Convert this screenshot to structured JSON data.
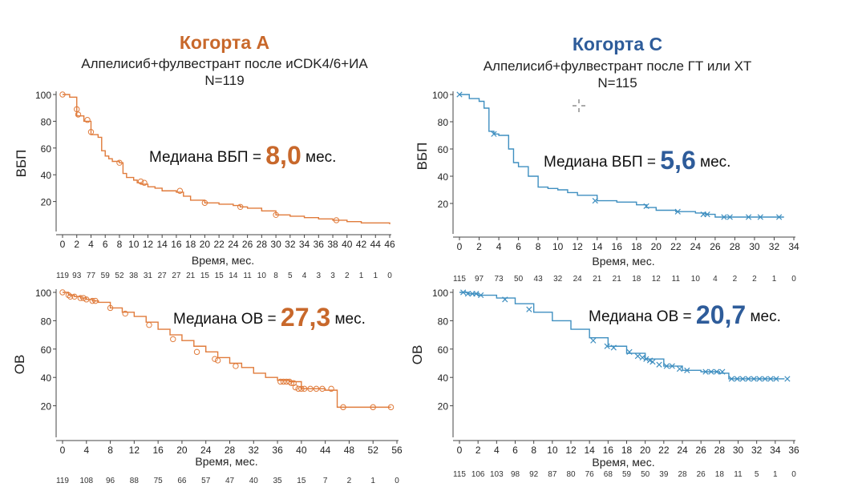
{
  "colors": {
    "orange": "#c8682b",
    "blue": "#2e5c9a",
    "orange_line": "#e07b3b",
    "blue_line": "#3f8fc0"
  },
  "cohort_a": {
    "title": "Когорта А",
    "subtitle": "Алпелисиб+фулвестрант после иCDK4/6+ИА",
    "n": "N=119",
    "pfs_median": {
      "prefix": "Медиана ВБП = ",
      "value": "8,0",
      "suffix": " мес."
    },
    "os_median": {
      "prefix": "Медиана ОВ = ",
      "value": "27,3",
      "suffix": " мес."
    }
  },
  "cohort_c": {
    "title": "Когорта С",
    "subtitle": "Алпелисиб+фулвестрант после ГТ или ХТ",
    "n": "N=115",
    "pfs_median": {
      "prefix": "Медиана ВБП = ",
      "value": "5,6",
      "suffix": " мес."
    },
    "os_median": {
      "prefix": "Медиана ОВ = ",
      "value": "20,7",
      "suffix": " мес."
    }
  },
  "chart_data": [
    {
      "id": "a_pfs",
      "type": "line",
      "title": "Когорта А — ВБП",
      "ylabel": "ВБП",
      "xlabel": "Время, мес.",
      "xlim": [
        0,
        46
      ],
      "ylim": [
        0,
        100
      ],
      "marker": "circle",
      "color_key": "orange_line",
      "xticks": [
        0,
        2,
        4,
        6,
        8,
        10,
        12,
        14,
        16,
        18,
        20,
        22,
        24,
        26,
        28,
        30,
        32,
        34,
        36,
        38,
        40,
        42,
        44,
        46
      ],
      "yticks": [
        20,
        40,
        60,
        80,
        100
      ],
      "risk": [
        "119",
        "93",
        "77",
        "59",
        "52",
        "38",
        "31",
        "27",
        "27",
        "21",
        "15",
        "15",
        "14",
        "11",
        "10",
        "8",
        "5",
        "4",
        "3",
        "3",
        "2",
        "1",
        "1",
        "0"
      ],
      "x": [
        0,
        1,
        2,
        2,
        3,
        4,
        4,
        5,
        5.5,
        6,
        6.5,
        7,
        8,
        8.5,
        9,
        10,
        10.5,
        11,
        12,
        13,
        14,
        16,
        17,
        18,
        20,
        22,
        24,
        25,
        26,
        28,
        30,
        32,
        34,
        36,
        38,
        40,
        42,
        44,
        46
      ],
      "y": [
        100,
        98,
        90,
        84,
        80,
        73,
        70,
        68,
        58,
        54,
        52,
        50,
        49,
        41,
        38,
        36,
        34,
        33,
        31,
        30,
        28,
        27,
        24,
        21,
        19,
        18,
        17,
        16,
        15,
        13,
        10,
        9,
        8,
        7,
        6,
        5,
        4,
        4,
        3
      ],
      "censor_x": [
        0,
        2,
        2.2,
        3.5,
        4,
        8,
        11,
        11.5,
        16.5,
        20,
        25,
        30,
        38.5
      ],
      "censor_y": [
        100,
        89,
        85,
        81,
        72,
        49,
        35,
        34,
        28,
        19,
        16,
        10,
        6
      ]
    },
    {
      "id": "a_os",
      "type": "line",
      "title": "Когорта А — ОВ",
      "ylabel": "ОВ",
      "xlabel": "Время, мес.",
      "xlim": [
        0,
        56
      ],
      "ylim": [
        0,
        100
      ],
      "marker": "circle",
      "color_key": "orange_line",
      "xticks": [
        0,
        4,
        8,
        12,
        16,
        20,
        24,
        28,
        32,
        36,
        40,
        44,
        48,
        52,
        56
      ],
      "yticks": [
        20,
        40,
        60,
        80,
        100
      ],
      "risk": [
        "119",
        "108",
        "96",
        "88",
        "75",
        "66",
        "57",
        "47",
        "40",
        "35",
        "15",
        "7",
        "2",
        "1",
        "0"
      ],
      "x": [
        0,
        1,
        2,
        3,
        4,
        5,
        6,
        8,
        10,
        12,
        14,
        16,
        18,
        20,
        22,
        24,
        26,
        28,
        30,
        32,
        34,
        36,
        38,
        40,
        44,
        45,
        46,
        47,
        50,
        55
      ],
      "y": [
        100,
        98,
        97,
        96,
        95,
        94,
        93,
        89,
        86,
        83,
        79,
        74,
        70,
        66,
        62,
        58,
        54,
        50,
        47,
        43,
        40,
        38,
        37,
        32,
        31,
        31,
        19,
        19,
        19,
        19
      ],
      "censor_x": [
        0,
        1,
        1.3,
        2,
        3,
        3.5,
        4,
        5,
        5.5,
        8,
        10.5,
        14.5,
        18.5,
        22.5,
        25.5,
        26,
        29,
        36.5,
        37,
        37.5,
        38,
        38.3,
        38.7,
        39,
        39.5,
        40,
        40.5,
        41.5,
        42.5,
        43.5,
        45,
        47,
        52,
        55
      ],
      "censor_y": [
        100,
        98,
        97,
        97,
        96,
        96,
        95,
        94,
        94,
        89,
        85,
        77,
        67,
        58,
        53,
        52,
        48,
        37,
        37,
        37,
        37,
        36,
        36,
        33,
        32,
        32,
        32,
        32,
        32,
        32,
        32,
        19,
        19,
        19
      ]
    },
    {
      "id": "c_pfs",
      "type": "line",
      "title": "Когорта С — ВБП",
      "ylabel": "ВБП",
      "xlabel": "Время, мес.",
      "xlim": [
        0,
        34
      ],
      "ylim": [
        0,
        100
      ],
      "marker": "x",
      "color_key": "blue_line",
      "xticks": [
        0,
        2,
        4,
        6,
        8,
        10,
        12,
        14,
        16,
        18,
        20,
        22,
        24,
        26,
        28,
        30,
        32,
        34
      ],
      "yticks": [
        20,
        40,
        60,
        80,
        100
      ],
      "risk": [
        "115",
        "97",
        "73",
        "50",
        "43",
        "32",
        "24",
        "21",
        "21",
        "18",
        "12",
        "11",
        "10",
        "4",
        "2",
        "2",
        "1",
        "0"
      ],
      "x": [
        0,
        1,
        2,
        2.5,
        3,
        3.5,
        4,
        5,
        5.5,
        6,
        7,
        8,
        9,
        10,
        11,
        12,
        14,
        16,
        18,
        19,
        20,
        22,
        24,
        25,
        26,
        28,
        30,
        32,
        33
      ],
      "y": [
        100,
        97,
        95,
        90,
        73,
        71,
        70,
        60,
        50,
        47,
        40,
        32,
        31,
        30,
        28,
        26,
        22,
        21,
        19,
        17,
        15,
        14,
        13,
        12,
        10,
        10,
        10,
        10,
        10
      ],
      "censor_x": [
        0,
        3.5,
        13.8,
        19,
        22.2,
        24.8,
        25.2,
        26.9,
        27.5,
        29.4,
        30.6,
        32.5
      ],
      "censor_y": [
        100,
        71,
        22,
        18,
        14,
        12,
        12,
        10,
        10,
        10,
        10,
        10
      ]
    },
    {
      "id": "c_os",
      "type": "line",
      "title": "Когорта С — ОВ",
      "ylabel": "ОВ",
      "xlabel": "Время, мес.",
      "xlim": [
        0,
        36
      ],
      "ylim": [
        0,
        100
      ],
      "marker": "x",
      "color_key": "blue_line",
      "xticks": [
        0,
        2,
        4,
        6,
        8,
        10,
        12,
        14,
        16,
        18,
        20,
        22,
        24,
        26,
        28,
        30,
        32,
        34,
        36
      ],
      "yticks": [
        20,
        40,
        60,
        80,
        100
      ],
      "risk": [
        "115",
        "106",
        "103",
        "98",
        "92",
        "87",
        "80",
        "76",
        "68",
        "59",
        "50",
        "39",
        "28",
        "26",
        "18",
        "11",
        "5",
        "1",
        "0"
      ],
      "x": [
        0,
        1,
        2,
        4,
        6,
        8,
        10,
        12,
        14,
        16,
        18,
        20,
        22,
        24,
        26,
        28,
        29,
        30,
        32,
        34,
        35
      ],
      "y": [
        100,
        99,
        98,
        96,
        92,
        86,
        80,
        74,
        68,
        62,
        57,
        53,
        48,
        45,
        44,
        43,
        39,
        39,
        39,
        39,
        39
      ],
      "censor_x": [
        0.4,
        0.9,
        1.4,
        1.8,
        2.3,
        4.9,
        7.5,
        14.4,
        15.9,
        16.6,
        18.3,
        19.2,
        19.7,
        20.1,
        20.5,
        20.8,
        21.5,
        22.3,
        22.9,
        23.7,
        24.5,
        26.5,
        27.1,
        27.7,
        28.3,
        29.3,
        29.9,
        30.5,
        31.1,
        31.7,
        32.3,
        32.9,
        33.5,
        34.1,
        35.3
      ],
      "censor_y": [
        100,
        99,
        99,
        99,
        98,
        95,
        88,
        66,
        62,
        61,
        58,
        55,
        54,
        53,
        52,
        51,
        49,
        48,
        48,
        46,
        45,
        44,
        44,
        44,
        44,
        39,
        39,
        39,
        39,
        39,
        39,
        39,
        39,
        39,
        39
      ]
    }
  ]
}
